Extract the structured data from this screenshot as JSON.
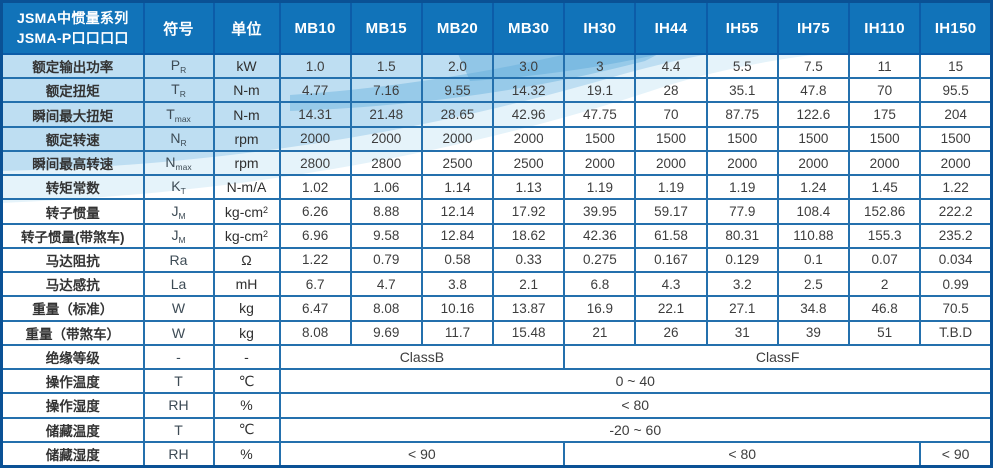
{
  "table": {
    "title_line1": "JSMA中惯量系列",
    "title_line2": "JSMA-P口口口口",
    "symbol_header": "符号",
    "unit_header": "单位",
    "models": [
      "MB10",
      "MB15",
      "MB20",
      "MB30",
      "IH30",
      "IH44",
      "IH55",
      "IH75",
      "IH110",
      "IH150"
    ],
    "rows": [
      {
        "label": "额定输出功率",
        "symbol": "P",
        "symbol_sub": "R",
        "unit": "kW",
        "values": [
          "1.0",
          "1.5",
          "2.0",
          "3.0",
          "3",
          "4.4",
          "5.5",
          "7.5",
          "11",
          "15"
        ]
      },
      {
        "label": "额定扭矩",
        "symbol": "T",
        "symbol_sub": "R",
        "unit": "N-m",
        "values": [
          "4.77",
          "7.16",
          "9.55",
          "14.32",
          "19.1",
          "28",
          "35.1",
          "47.8",
          "70",
          "95.5"
        ]
      },
      {
        "label": "瞬间最大扭矩",
        "symbol": "T",
        "symbol_sub": "max",
        "unit": "N-m",
        "values": [
          "14.31",
          "21.48",
          "28.65",
          "42.96",
          "47.75",
          "70",
          "87.75",
          "122.6",
          "175",
          "204"
        ]
      },
      {
        "label": "额定转速",
        "symbol": "N",
        "symbol_sub": "R",
        "unit": "rpm",
        "values": [
          "2000",
          "2000",
          "2000",
          "2000",
          "1500",
          "1500",
          "1500",
          "1500",
          "1500",
          "1500"
        ]
      },
      {
        "label": "瞬间最高转速",
        "symbol": "N",
        "symbol_sub": "max",
        "unit": "rpm",
        "values": [
          "2800",
          "2800",
          "2500",
          "2500",
          "2000",
          "2000",
          "2000",
          "2000",
          "2000",
          "2000"
        ]
      },
      {
        "label": "转矩常数",
        "symbol": "K",
        "symbol_sub": "T",
        "unit": "N-m/A",
        "values": [
          "1.02",
          "1.06",
          "1.14",
          "1.13",
          "1.19",
          "1.19",
          "1.19",
          "1.24",
          "1.45",
          "1.22"
        ]
      },
      {
        "label": "转子惯量",
        "symbol": "J",
        "symbol_sub": "M",
        "unit": "kg-cm",
        "unit_sup": "2",
        "values": [
          "6.26",
          "8.88",
          "12.14",
          "17.92",
          "39.95",
          "59.17",
          "77.9",
          "108.4",
          "152.86",
          "222.2"
        ]
      },
      {
        "label": "转子惯量(带煞车)",
        "symbol": "J",
        "symbol_sub": "M",
        "unit": "kg-cm",
        "unit_sup": "2",
        "values": [
          "6.96",
          "9.58",
          "12.84",
          "18.62",
          "42.36",
          "61.58",
          "80.31",
          "110.88",
          "155.3",
          "235.2"
        ]
      },
      {
        "label": "马达阻抗",
        "symbol": "Ra",
        "symbol_sub": "",
        "unit": "Ω",
        "values": [
          "1.22",
          "0.79",
          "0.58",
          "0.33",
          "0.275",
          "0.167",
          "0.129",
          "0.1",
          "0.07",
          "0.034"
        ]
      },
      {
        "label": "马达感抗",
        "symbol": "La",
        "symbol_sub": "",
        "unit": "mH",
        "values": [
          "6.7",
          "4.7",
          "3.8",
          "2.1",
          "6.8",
          "4.3",
          "3.2",
          "2.5",
          "2",
          "0.99"
        ]
      },
      {
        "label": "重量（标准）",
        "symbol": "W",
        "symbol_sub": "",
        "unit": "kg",
        "values": [
          "6.47",
          "8.08",
          "10.16",
          "13.87",
          "16.9",
          "22.1",
          "27.1",
          "34.8",
          "46.8",
          "70.5"
        ]
      },
      {
        "label": "重量（带煞车）",
        "symbol": "W",
        "symbol_sub": "",
        "unit": "kg",
        "values": [
          "8.08",
          "9.69",
          "11.7",
          "15.48",
          "21",
          "26",
          "31",
          "39",
          "51",
          "T.B.D"
        ]
      },
      {
        "label": "绝缘等级",
        "symbol": "-",
        "symbol_sub": "",
        "unit": "-",
        "spans": [
          {
            "text": "ClassB",
            "cols": 4
          },
          {
            "text": "ClassF",
            "cols": 6
          }
        ]
      },
      {
        "label": "操作温度",
        "symbol": "T",
        "symbol_sub": "",
        "unit": "℃",
        "spans": [
          {
            "text": "0 ~ 40",
            "cols": 10
          }
        ]
      },
      {
        "label": "操作湿度",
        "symbol": "RH",
        "symbol_sub": "",
        "unit": "%",
        "spans": [
          {
            "text": "< 80",
            "cols": 10
          }
        ]
      },
      {
        "label": "储藏温度",
        "symbol": "T",
        "symbol_sub": "",
        "unit": "℃",
        "spans": [
          {
            "text": "-20 ~ 60",
            "cols": 10
          }
        ]
      },
      {
        "label": "储藏湿度",
        "symbol": "RH",
        "symbol_sub": "",
        "unit": "%",
        "spans": [
          {
            "text": "< 90",
            "cols": 4
          },
          {
            "text": "< 80",
            "cols": 5
          },
          {
            "text": "< 90",
            "cols": 1
          }
        ]
      }
    ],
    "colors": {
      "header_bg": "#1173b9",
      "header_border": "#0c5ca8",
      "grid_line": "#2470ad",
      "outer_border": "#0a5195",
      "wave_blue": "#9cd0ec",
      "text_dark": "#3d3d3d"
    }
  }
}
